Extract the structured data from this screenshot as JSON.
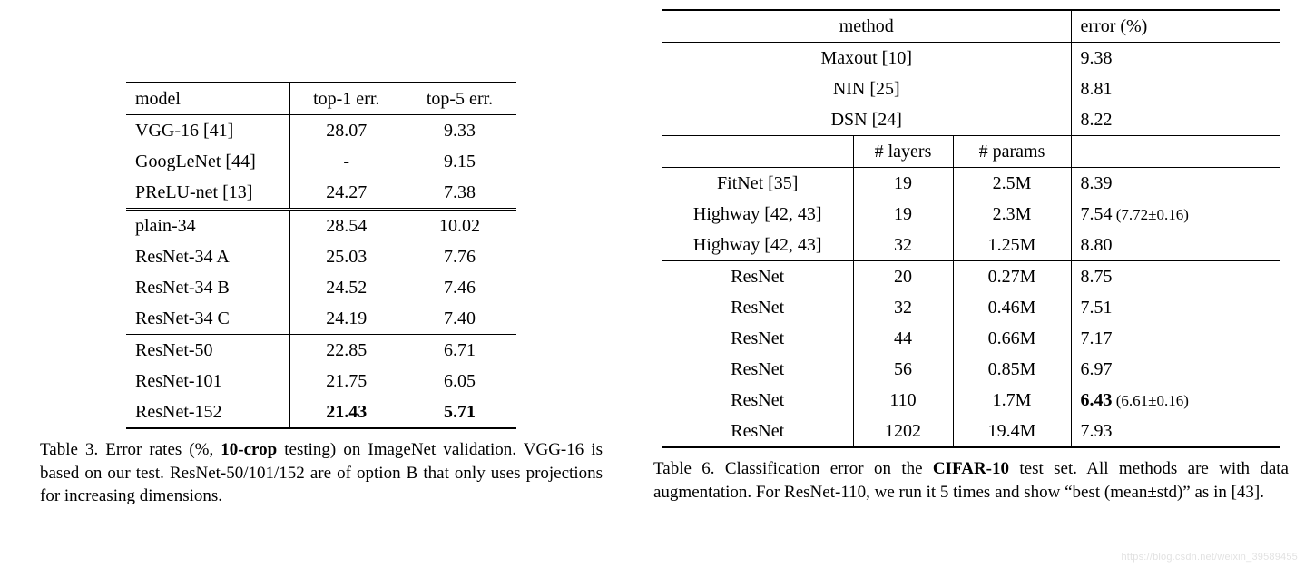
{
  "table3": {
    "headers": {
      "model": "model",
      "top1": "top-1 err.",
      "top5": "top-5 err."
    },
    "group1": [
      {
        "model": "VGG-16 [41]",
        "top1": "28.07",
        "top5": "9.33"
      },
      {
        "model": "GoogLeNet [44]",
        "top1": "-",
        "top5": "9.15"
      },
      {
        "model": "PReLU-net [13]",
        "top1": "24.27",
        "top5": "7.38"
      }
    ],
    "group2": [
      {
        "model": "plain-34",
        "top1": "28.54",
        "top5": "10.02"
      },
      {
        "model": "ResNet-34 A",
        "top1": "25.03",
        "top5": "7.76"
      },
      {
        "model": "ResNet-34 B",
        "top1": "24.52",
        "top5": "7.46"
      },
      {
        "model": "ResNet-34 C",
        "top1": "24.19",
        "top5": "7.40"
      }
    ],
    "group3": [
      {
        "model": "ResNet-50",
        "top1": "22.85",
        "top5": "6.71"
      },
      {
        "model": "ResNet-101",
        "top1": "21.75",
        "top5": "6.05"
      },
      {
        "model": "ResNet-152",
        "top1": "21.43",
        "top5": "5.71",
        "bold": true
      }
    ],
    "caption_pre": "Table 3. Error rates (%, ",
    "caption_bold": "10-crop",
    "caption_post": " testing) on ImageNet validation. VGG-16 is based on our test. ResNet-50/101/152 are of option B that only uses projections for increasing dimensions."
  },
  "table6": {
    "headers": {
      "method": "method",
      "error": "error (%)",
      "layers": "# layers",
      "params": "# params"
    },
    "top_methods": [
      {
        "method": "Maxout [10]",
        "error": "9.38"
      },
      {
        "method": "NIN [25]",
        "error": "8.81"
      },
      {
        "method": "DSN [24]",
        "error": "8.22"
      }
    ],
    "middle_rows": [
      {
        "method": "FitNet [35]",
        "layers": "19",
        "params": "2.5M",
        "error": "8.39"
      },
      {
        "method": "Highway [42, 43]",
        "layers": "19",
        "params": "2.3M",
        "error": "7.54",
        "extra": " (7.72±0.16)"
      },
      {
        "method": "Highway [42, 43]",
        "layers": "32",
        "params": "1.25M",
        "error": "8.80"
      }
    ],
    "resnet_rows": [
      {
        "method": "ResNet",
        "layers": "20",
        "params": "0.27M",
        "error": "8.75"
      },
      {
        "method": "ResNet",
        "layers": "32",
        "params": "0.46M",
        "error": "7.51"
      },
      {
        "method": "ResNet",
        "layers": "44",
        "params": "0.66M",
        "error": "7.17"
      },
      {
        "method": "ResNet",
        "layers": "56",
        "params": "0.85M",
        "error": "6.97"
      },
      {
        "method": "ResNet",
        "layers": "110",
        "params": "1.7M",
        "error": "6.43",
        "bold_error": true,
        "extra": " (6.61±0.16)"
      },
      {
        "method": "ResNet",
        "layers": "1202",
        "params": "19.4M",
        "error": "7.93"
      }
    ],
    "caption_pre": "Table 6. Classification error on the ",
    "caption_bold": "CIFAR-10",
    "caption_post": " test set. All methods are with data augmentation. For ResNet-110, we run it 5 times and show “best (mean±std)” as in [43]."
  },
  "watermark": "https://blog.csdn.net/weixin_39589455"
}
